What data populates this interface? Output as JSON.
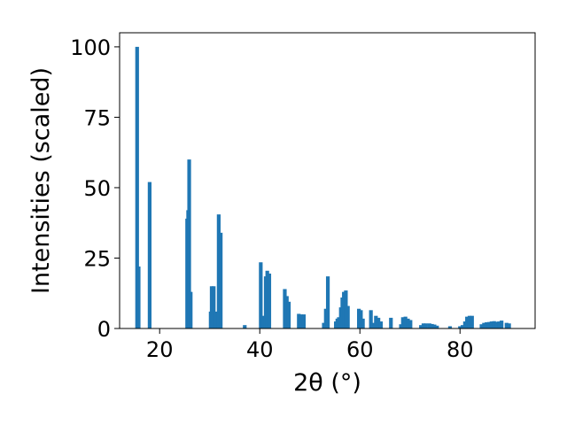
{
  "chart_data": {
    "type": "bar",
    "xlabel": "2θ (°)",
    "ylabel": "Intensities (scaled)",
    "xlim": [
      12,
      95
    ],
    "ylim": [
      0,
      105
    ],
    "x_ticks": [
      20,
      40,
      60,
      80
    ],
    "y_ticks": [
      0,
      25,
      50,
      75,
      100
    ],
    "grid": false,
    "bar_color": "#1f77b4",
    "points": [
      {
        "x": 15.5,
        "y": 100
      },
      {
        "x": 15.8,
        "y": 22
      },
      {
        "x": 18.0,
        "y": 52
      },
      {
        "x": 25.5,
        "y": 39
      },
      {
        "x": 25.7,
        "y": 42
      },
      {
        "x": 25.9,
        "y": 60
      },
      {
        "x": 26.2,
        "y": 13
      },
      {
        "x": 30.2,
        "y": 6
      },
      {
        "x": 30.4,
        "y": 15
      },
      {
        "x": 30.8,
        "y": 15
      },
      {
        "x": 31.2,
        "y": 6
      },
      {
        "x": 31.8,
        "y": 40.5
      },
      {
        "x": 32.2,
        "y": 34
      },
      {
        "x": 37.0,
        "y": 1.2
      },
      {
        "x": 40.2,
        "y": 23.5
      },
      {
        "x": 40.8,
        "y": 4.5
      },
      {
        "x": 41.2,
        "y": 18.5
      },
      {
        "x": 41.5,
        "y": 20.5
      },
      {
        "x": 41.9,
        "y": 19.5
      },
      {
        "x": 45.0,
        "y": 14
      },
      {
        "x": 45.4,
        "y": 11.5
      },
      {
        "x": 45.8,
        "y": 9.5
      },
      {
        "x": 47.8,
        "y": 5.2
      },
      {
        "x": 48.3,
        "y": 5
      },
      {
        "x": 48.8,
        "y": 5
      },
      {
        "x": 52.8,
        "y": 2
      },
      {
        "x": 53.2,
        "y": 7
      },
      {
        "x": 53.6,
        "y": 18.5
      },
      {
        "x": 55.2,
        "y": 2.5
      },
      {
        "x": 55.5,
        "y": 3.5
      },
      {
        "x": 55.8,
        "y": 4
      },
      {
        "x": 56.2,
        "y": 7.5
      },
      {
        "x": 56.5,
        "y": 11
      },
      {
        "x": 56.8,
        "y": 13
      },
      {
        "x": 57.2,
        "y": 13.5
      },
      {
        "x": 57.6,
        "y": 8
      },
      {
        "x": 59.8,
        "y": 7
      },
      {
        "x": 60.2,
        "y": 6.5
      },
      {
        "x": 60.6,
        "y": 3.5
      },
      {
        "x": 62.2,
        "y": 6.5
      },
      {
        "x": 62.6,
        "y": 2
      },
      {
        "x": 63.2,
        "y": 4.5
      },
      {
        "x": 63.7,
        "y": 3.8
      },
      {
        "x": 64.2,
        "y": 2.5
      },
      {
        "x": 66.2,
        "y": 3.8
      },
      {
        "x": 68.2,
        "y": 1.5
      },
      {
        "x": 68.6,
        "y": 4
      },
      {
        "x": 69.1,
        "y": 4.2
      },
      {
        "x": 69.6,
        "y": 3.5
      },
      {
        "x": 70.1,
        "y": 3
      },
      {
        "x": 72.2,
        "y": 1.2
      },
      {
        "x": 72.7,
        "y": 1.8
      },
      {
        "x": 73.2,
        "y": 1.8
      },
      {
        "x": 73.9,
        "y": 1.8
      },
      {
        "x": 74.4,
        "y": 1.6
      },
      {
        "x": 74.9,
        "y": 1.4
      },
      {
        "x": 75.4,
        "y": 1
      },
      {
        "x": 78.0,
        "y": 0.8
      },
      {
        "x": 80.0,
        "y": 0.8
      },
      {
        "x": 80.5,
        "y": 1.2
      },
      {
        "x": 81.0,
        "y": 2.5
      },
      {
        "x": 81.4,
        "y": 4.2
      },
      {
        "x": 81.9,
        "y": 4.5
      },
      {
        "x": 82.4,
        "y": 4.5
      },
      {
        "x": 84.3,
        "y": 1.5
      },
      {
        "x": 84.8,
        "y": 2
      },
      {
        "x": 85.3,
        "y": 2.2
      },
      {
        "x": 85.8,
        "y": 2.3
      },
      {
        "x": 86.3,
        "y": 2.5
      },
      {
        "x": 86.8,
        "y": 2.6
      },
      {
        "x": 87.3,
        "y": 2.4
      },
      {
        "x": 87.8,
        "y": 2.5
      },
      {
        "x": 88.3,
        "y": 2.8
      },
      {
        "x": 89.3,
        "y": 2
      },
      {
        "x": 89.8,
        "y": 1.8
      }
    ]
  }
}
